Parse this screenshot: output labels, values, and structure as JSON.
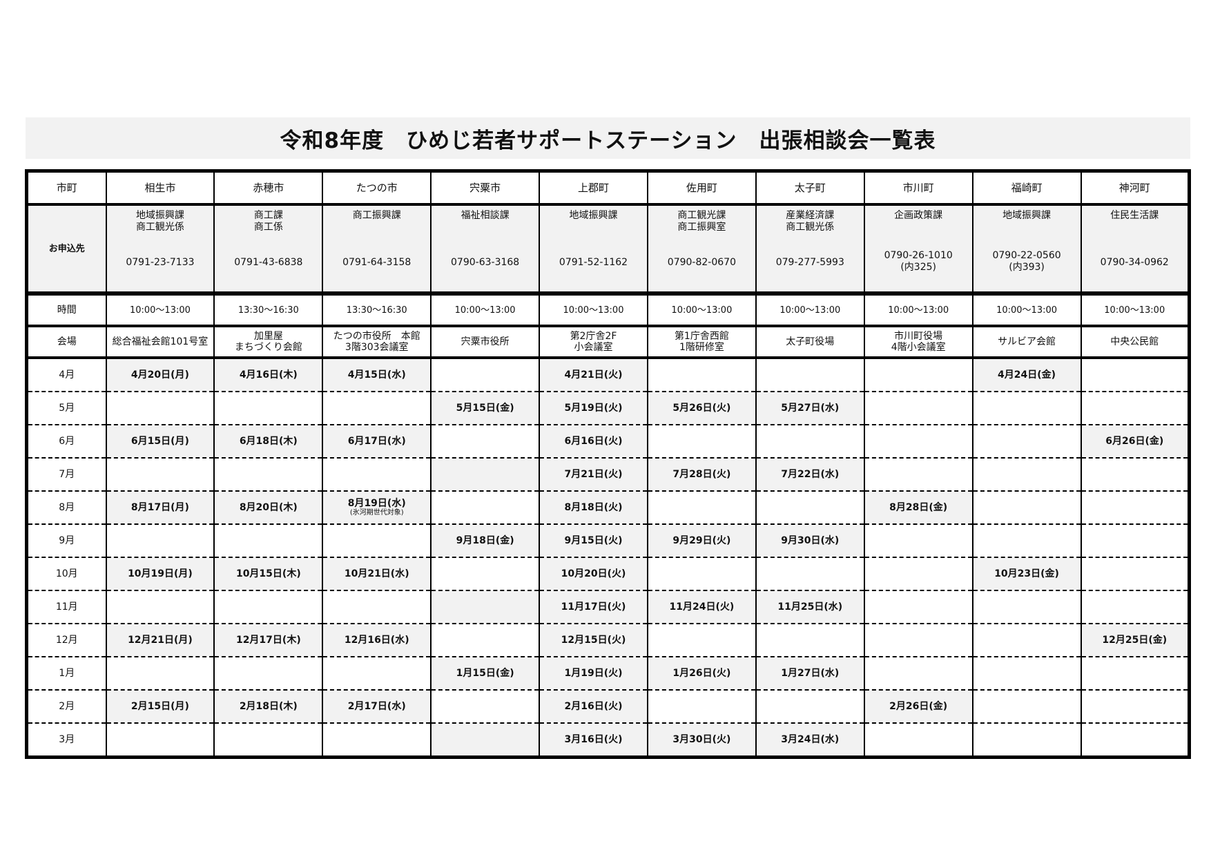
{
  "title": "令和8年度　ひめじ若者サポートステーション　出張相談会一覧表",
  "row_labels": {
    "municipality": "市町",
    "contact": "お申込先",
    "time": "時間",
    "venue": "会場"
  },
  "colors": {
    "shade": "#f2f2f2",
    "border": "#000000"
  },
  "columns": [
    {
      "name": "相生市",
      "dept": [
        "地域振興課",
        "商工観光係"
      ],
      "tel": [
        "0791-23-7133"
      ],
      "time": "10:00～13:00",
      "venue": [
        "総合福祉会館101号室"
      ]
    },
    {
      "name": "赤穂市",
      "dept": [
        "商工課",
        "商工係"
      ],
      "tel": [
        "0791-43-6838"
      ],
      "time": "13:30～16:30",
      "venue": [
        "加里屋",
        "まちづくり会館"
      ]
    },
    {
      "name": "たつの市",
      "dept": [
        "商工振興課"
      ],
      "tel": [
        "0791-64-3158"
      ],
      "time": "13:30～16:30",
      "venue": [
        "たつの市役所　本館",
        "3階303会議室"
      ]
    },
    {
      "name": "宍粟市",
      "dept": [
        "福祉相談課"
      ],
      "tel": [
        "0790-63-3168"
      ],
      "time": "10:00～13:00",
      "venue": [
        "宍粟市役所"
      ]
    },
    {
      "name": "上郡町",
      "dept": [
        "地域振興課"
      ],
      "tel": [
        "0791-52-1162"
      ],
      "time": "10:00～13:00",
      "venue": [
        "第2庁舎2F",
        "小会議室"
      ]
    },
    {
      "name": "佐用町",
      "dept": [
        "商工観光課",
        "商工振興室"
      ],
      "tel": [
        "0790-82-0670"
      ],
      "time": "10:00～13:00",
      "venue": [
        "第1庁舎西館",
        "1階研修室"
      ]
    },
    {
      "name": "太子町",
      "dept": [
        "産業経済課",
        "商工観光係"
      ],
      "tel": [
        "079-277-5993"
      ],
      "time": "10:00～13:00",
      "venue": [
        "太子町役場"
      ]
    },
    {
      "name": "市川町",
      "dept": [
        "企画政策課"
      ],
      "tel": [
        "0790-26-1010",
        "(内325)"
      ],
      "time": "10:00～13:00",
      "venue": [
        "市川町役場",
        "4階小会議室"
      ]
    },
    {
      "name": "福崎町",
      "dept": [
        "地域振興課"
      ],
      "tel": [
        "0790-22-0560",
        "(内393)"
      ],
      "time": "10:00～13:00",
      "venue": [
        "サルビア会館"
      ]
    },
    {
      "name": "神河町",
      "dept": [
        "住民生活課"
      ],
      "tel": [
        "0790-34-0962"
      ],
      "time": "10:00～13:00",
      "venue": [
        "中央公民館"
      ]
    }
  ],
  "months": [
    {
      "label": "4月",
      "dates": [
        "4月20日(月)",
        "4月16日(木)",
        "4月15日(水)",
        "",
        "4月21日(火)",
        "",
        "",
        "",
        "4月24日(金)",
        ""
      ]
    },
    {
      "label": "5月",
      "dates": [
        "",
        "",
        "",
        "5月15日(金)",
        "5月19日(火)",
        "5月26日(火)",
        "5月27日(水)",
        "",
        "",
        ""
      ]
    },
    {
      "label": "6月",
      "dates": [
        "6月15日(月)",
        "6月18日(木)",
        "6月17日(水)",
        "",
        "6月16日(火)",
        "",
        "",
        "",
        "",
        "6月26日(金)"
      ]
    },
    {
      "label": "7月",
      "dates": [
        "",
        "",
        "",
        "",
        "7月21日(火)",
        "7月28日(火)",
        "7月22日(水)",
        "",
        "",
        ""
      ]
    },
    {
      "label": "8月",
      "dates": [
        "8月17日(月)",
        "8月20日(木)",
        "8月19日(水)",
        "",
        "8月18日(火)",
        "",
        "",
        "8月28日(金)",
        "",
        ""
      ],
      "notes": [
        "",
        "",
        "(氷河期世代対象)",
        "",
        "",
        "",
        "",
        "",
        "",
        ""
      ]
    },
    {
      "label": "9月",
      "dates": [
        "",
        "",
        "",
        "9月18日(金)",
        "9月15日(火)",
        "9月29日(火)",
        "9月30日(水)",
        "",
        "",
        ""
      ]
    },
    {
      "label": "10月",
      "dates": [
        "10月19日(月)",
        "10月15日(木)",
        "10月21日(水)",
        "",
        "10月20日(火)",
        "",
        "",
        "",
        "10月23日(金)",
        ""
      ]
    },
    {
      "label": "11月",
      "dates": [
        "",
        "",
        "",
        "",
        "11月17日(火)",
        "11月24日(火)",
        "11月25日(水)",
        "",
        "",
        ""
      ]
    },
    {
      "label": "12月",
      "dates": [
        "12月21日(月)",
        "12月17日(木)",
        "12月16日(水)",
        "",
        "12月15日(火)",
        "",
        "",
        "",
        "",
        "12月25日(金)"
      ]
    },
    {
      "label": "1月",
      "dates": [
        "",
        "",
        "",
        "1月15日(金)",
        "1月19日(火)",
        "1月26日(火)",
        "1月27日(水)",
        "",
        "",
        ""
      ]
    },
    {
      "label": "2月",
      "dates": [
        "2月15日(月)",
        "2月18日(木)",
        "2月17日(水)",
        "",
        "2月16日(火)",
        "",
        "",
        "2月26日(金)",
        "",
        ""
      ]
    },
    {
      "label": "3月",
      "dates": [
        "",
        "",
        "",
        "",
        "3月16日(火)",
        "3月30日(火)",
        "3月24日(水)",
        "",
        "",
        ""
      ]
    }
  ]
}
